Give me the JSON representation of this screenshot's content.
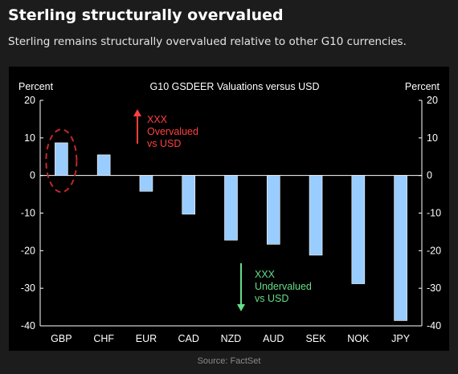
{
  "header": {
    "title": "Sterling structurally overvalued",
    "subtitle": "Sterling remains structurally overvalued relative to other G10 currencies."
  },
  "footer": {
    "source": "Source: FactSet"
  },
  "colors": {
    "background": "#1c1c1c",
    "panel": "#000000",
    "bar": "#99ccff",
    "overvalued": "#ff4040",
    "undervalued": "#66dd88",
    "highlight": "#c0282c"
  },
  "chart_data": {
    "type": "bar",
    "title": "G10 GSDEER Valuations versus USD",
    "ylabel_left": "Percent",
    "ylabel_right": "Percent",
    "ylim": [
      -40,
      20
    ],
    "yticks": [
      20,
      10,
      0,
      -10,
      -20,
      -30,
      -40
    ],
    "grid": false,
    "categories": [
      "GBP",
      "CHF",
      "EUR",
      "CAD",
      "NZD",
      "AUD",
      "SEK",
      "NOK",
      "JPY"
    ],
    "values": [
      8.7,
      5.5,
      -4.2,
      -10.3,
      -17.2,
      -18.3,
      -21.2,
      -28.8,
      -38.6
    ],
    "highlighted_category": "GBP",
    "annotations": [
      {
        "kind": "overvalued",
        "lines": [
          "XXX",
          "Overvalued",
          "vs USD"
        ],
        "arrow": "up"
      },
      {
        "kind": "undervalued",
        "lines": [
          "XXX",
          "Undervalued",
          "vs USD"
        ],
        "arrow": "down"
      }
    ]
  }
}
